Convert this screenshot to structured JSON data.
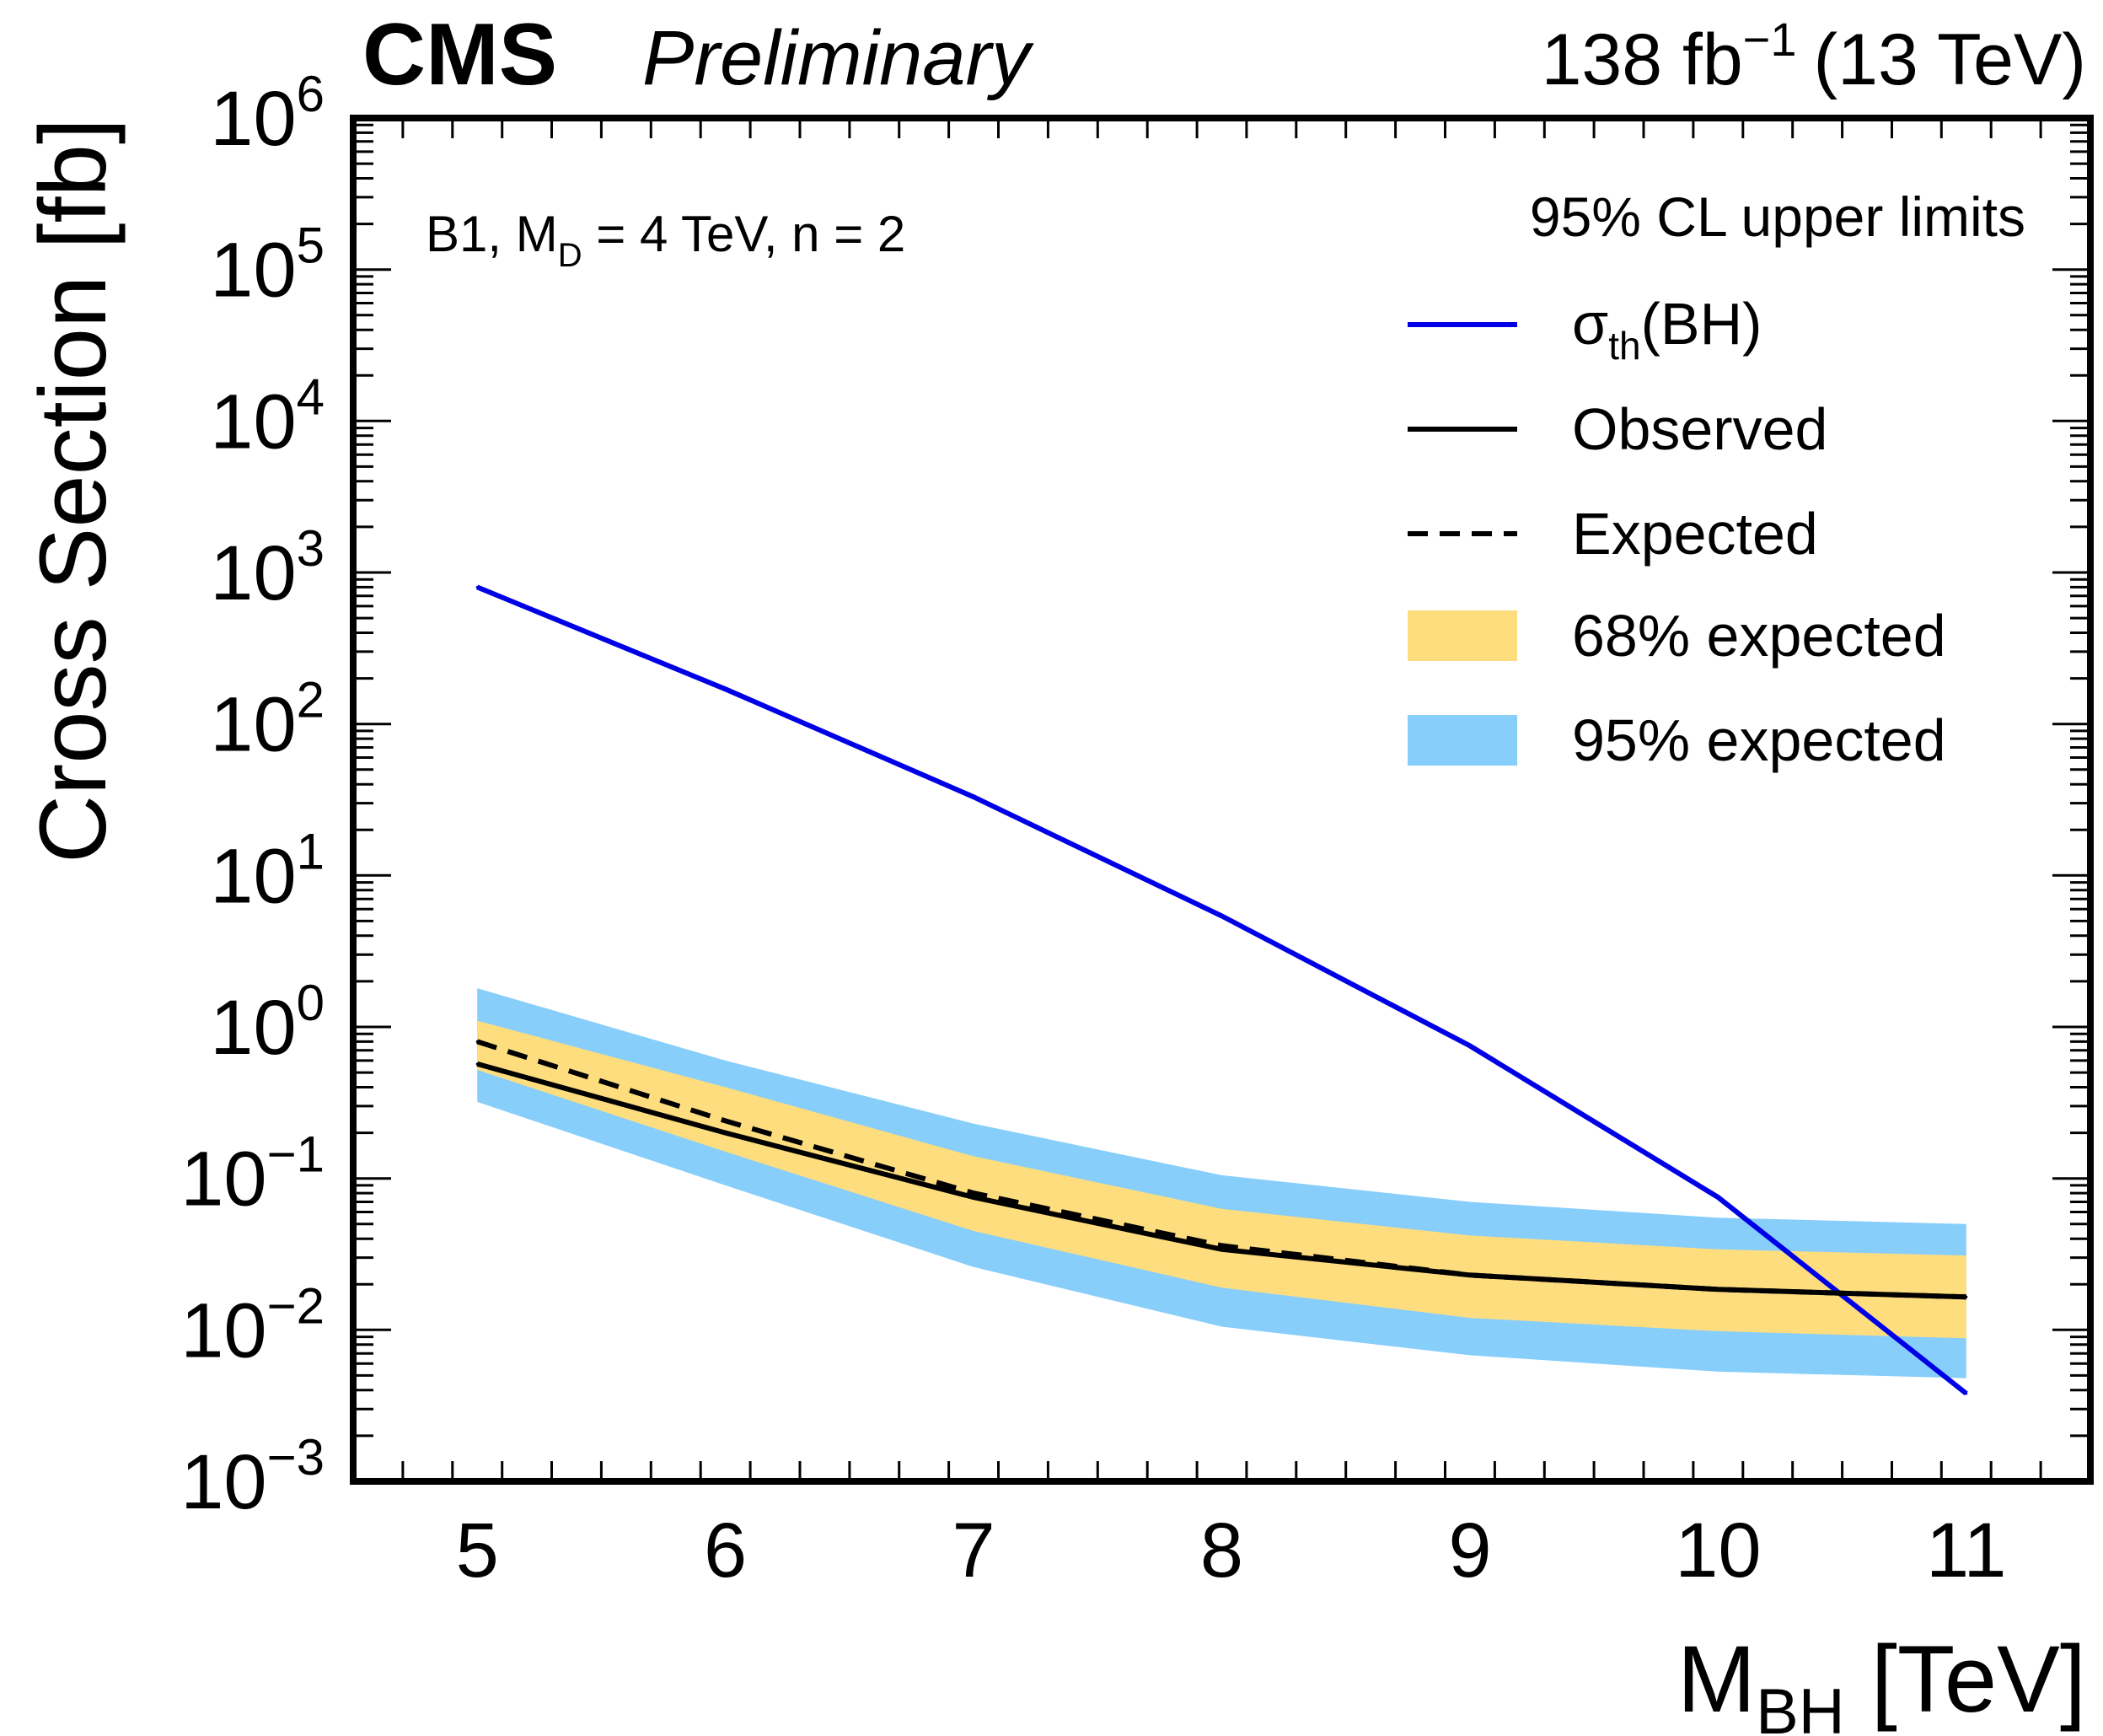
{
  "chart_data": {
    "type": "line",
    "experiment": "CMS",
    "status": "Preliminary",
    "lumi_label": {
      "value": "138 fb",
      "exponent": "−1",
      "energy": "(13 TeV)"
    },
    "model_label": {
      "prefix": "B1, M",
      "sub": "D",
      "suffix": " = 4 TeV, n = 2"
    },
    "xlabel": {
      "main": "M",
      "sub": "BH",
      "unit": " [TeV]"
    },
    "ylabel": "Cross Section [fb]",
    "xlim": [
      4.5,
      11.5
    ],
    "ylim": [
      0.001,
      1000000
    ],
    "yscale": "log",
    "x_ticks": [
      5,
      6,
      7,
      8,
      9,
      10,
      11
    ],
    "x_tick_labels": [
      "5",
      "6",
      "7",
      "8",
      "9",
      "10",
      "11"
    ],
    "y_tick_labels": [
      {
        "base": "10",
        "exp": "−3"
      },
      {
        "base": "10",
        "exp": "−2"
      },
      {
        "base": "10",
        "exp": "−1"
      },
      {
        "base": "10",
        "exp": "0"
      },
      {
        "base": "10",
        "exp": "1"
      },
      {
        "base": "10",
        "exp": "2"
      },
      {
        "base": "10",
        "exp": "3"
      },
      {
        "base": "10",
        "exp": "4"
      },
      {
        "base": "10",
        "exp": "5"
      },
      {
        "base": "10",
        "exp": "6"
      }
    ],
    "legend": {
      "title": "95% CL upper limits",
      "position": "top-right",
      "entries": [
        {
          "key": "theory",
          "label_main": "σ",
          "label_sub": "th",
          "label_tail": "(BH)",
          "style": "line",
          "color": "#0000e6"
        },
        {
          "key": "observed",
          "label": "Observed",
          "style": "line",
          "color": "#000000"
        },
        {
          "key": "expected",
          "label": "Expected",
          "style": "dashed",
          "color": "#000000"
        },
        {
          "key": "band68",
          "label": "68% expected",
          "style": "band",
          "color": "#fedd7f"
        },
        {
          "key": "band95",
          "label": "95% expected",
          "style": "band",
          "color": "#87cefa"
        }
      ]
    },
    "x": [
      5,
      6,
      7,
      8,
      9,
      10,
      11
    ],
    "series": [
      {
        "name": "σth(BH)",
        "color": "#0000e6",
        "style": "solid",
        "values": [
          800,
          170,
          33,
          5.4,
          0.75,
          0.075,
          0.0038
        ]
      },
      {
        "name": "Observed",
        "color": "#000000",
        "style": "solid",
        "values": [
          0.57,
          0.2,
          0.075,
          0.034,
          0.023,
          0.0185,
          0.0165
        ]
      },
      {
        "name": "Expected",
        "color": "#000000",
        "style": "dashed",
        "values": [
          0.8,
          0.24,
          0.08,
          0.036,
          0.023,
          0.0185,
          0.0165
        ]
      }
    ],
    "bands": [
      {
        "name": "95% expected",
        "color": "#87cefa",
        "lower": [
          0.32,
          0.09,
          0.026,
          0.0105,
          0.0068,
          0.0053,
          0.0048
        ],
        "upper": [
          1.8,
          0.6,
          0.23,
          0.105,
          0.07,
          0.055,
          0.05
        ]
      },
      {
        "name": "68% expected",
        "color": "#fedd7f",
        "lower": [
          0.52,
          0.15,
          0.045,
          0.019,
          0.012,
          0.0098,
          0.0088
        ],
        "upper": [
          1.1,
          0.4,
          0.14,
          0.063,
          0.042,
          0.034,
          0.031
        ]
      }
    ]
  }
}
